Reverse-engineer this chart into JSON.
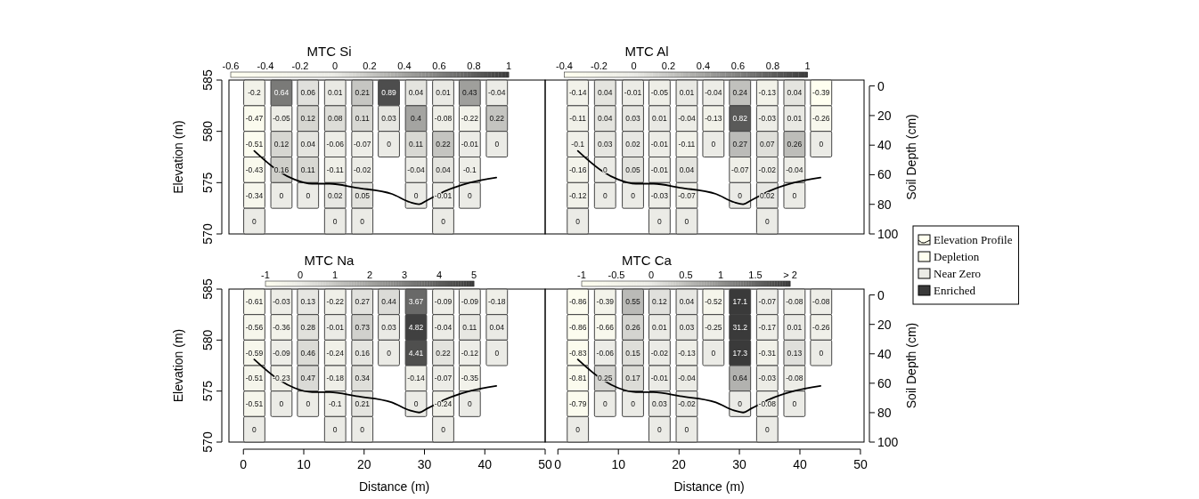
{
  "chart_data": [
    {
      "type": "heatmap",
      "title": "MTC Si",
      "ylabel": "Elevation (m)",
      "xlim": [
        -2.4,
        50
      ],
      "ylim": [
        570,
        585
      ],
      "yticks": [
        570,
        575,
        580,
        585
      ],
      "tick_labels": "y",
      "clim": [
        -0.6,
        1
      ],
      "cticks": [
        -0.6,
        -0.4,
        -0.2,
        0,
        0.2,
        0.4,
        0.6,
        0.8,
        1
      ],
      "colors": [
        "#fffff0",
        "#ebebe6",
        "#3a3a3a"
      ],
      "data_labels": true,
      "x": [
        1.8,
        6.3,
        10.7,
        15.2,
        19.7,
        24.1,
        28.6,
        33.1,
        37.5,
        42.0
      ],
      "cells": [
        [
          -0.2,
          0.64,
          0.06,
          0.01,
          0.21,
          0.89,
          0.04,
          0.01,
          0.43,
          -0.04
        ],
        [
          -0.47,
          -0.05,
          0.12,
          0.08,
          0.11,
          0.03,
          0.4,
          -0.08,
          -0.22,
          0.22
        ],
        [
          -0.51,
          0.12,
          0.04,
          -0.06,
          -0.07,
          0,
          0.11,
          0.22,
          -0.01,
          0
        ],
        [
          -0.43,
          0.16,
          0.11,
          -0.11,
          -0.02,
          null,
          -0.04,
          0.04,
          -0.1,
          null
        ],
        [
          -0.34,
          0,
          0,
          0.02,
          0.05,
          null,
          0,
          -0.01,
          0,
          null
        ],
        [
          0,
          null,
          null,
          0,
          0,
          null,
          null,
          0,
          null,
          null
        ]
      ],
      "series": [
        {
          "type": "line",
          "color": "#000000",
          "x": [
            1.8,
            5.9,
            8.5,
            11.4,
            14.3,
            18.7,
            24.6,
            27.6,
            29.1,
            30.5,
            33.5,
            37.5,
            41.9
          ],
          "values": [
            578.1,
            576.1,
            575.3,
            574.9,
            574.9,
            574.5,
            573.9,
            573.1,
            572.9,
            573.3,
            574.2,
            575.0,
            575.5
          ],
          "value_labels": [
            null,
            null,
            null,
            null,
            null,
            null,
            null,
            null,
            null,
            null,
            null,
            null,
            null
          ]
        }
      ]
    },
    {
      "type": "heatmap",
      "title": "MTC Al",
      "y2label": "Soil Depth (cm)",
      "xlim": [
        -2.1,
        50.6
      ],
      "ylim": [
        570,
        585
      ],
      "y2lim": [
        100,
        -4
      ],
      "y2ticks": [
        0,
        20,
        40,
        60,
        80,
        100
      ],
      "tick_labels": "y2",
      "clim": [
        -0.4,
        1
      ],
      "cticks": [
        -0.4,
        -0.2,
        0,
        0.2,
        0.4,
        0.6,
        0.8,
        1
      ],
      "colors": [
        "#fffff0",
        "#ebebe6",
        "#3a3a3a"
      ],
      "data_labels": true,
      "legend": "right",
      "x": [
        3.3,
        7.8,
        12.4,
        16.8,
        21.3,
        25.7,
        30.1,
        34.6,
        39.1,
        43.5
      ],
      "cells": [
        [
          -0.14,
          0.04,
          -0.01,
          -0.05,
          0.01,
          -0.04,
          0.24,
          -0.13,
          0.04,
          -0.39
        ],
        [
          -0.11,
          0.04,
          0.03,
          0.01,
          -0.04,
          -0.13,
          0.82,
          -0.03,
          0.01,
          -0.26
        ],
        [
          -0.1,
          0.03,
          0.02,
          -0.01,
          -0.11,
          0,
          0.27,
          0.07,
          0.26,
          0
        ],
        [
          -0.16,
          0,
          0.05,
          -0.01,
          0.04,
          null,
          -0.07,
          -0.02,
          -0.04,
          null
        ],
        [
          -0.12,
          0,
          0,
          -0.03,
          -0.07,
          null,
          0,
          0.02,
          0,
          null
        ],
        [
          0,
          null,
          null,
          0,
          0,
          null,
          null,
          0,
          null,
          null
        ]
      ],
      "series": [
        {
          "type": "line",
          "name": "Elevation Profile",
          "color": "#000000",
          "x": [
            3.3,
            7.4,
            10.0,
            12.9,
            15.8,
            20.2,
            26.1,
            29.1,
            30.6,
            32.0,
            35.0,
            39.0,
            43.4
          ],
          "values": [
            578.1,
            576.1,
            575.3,
            574.9,
            574.9,
            574.5,
            573.9,
            573.1,
            572.9,
            573.3,
            574.2,
            575.0,
            575.5
          ],
          "value_labels": [
            null,
            null,
            null,
            null,
            null,
            null,
            null,
            null,
            null,
            null,
            null,
            null,
            null
          ]
        }
      ],
      "annotations": [
        "Depletion",
        "Near Zero",
        "Enriched"
      ]
    },
    {
      "type": "heatmap",
      "title": "MTC Na",
      "xlabel": "Distance (m)",
      "ylabel": "Elevation (m)",
      "xlim": [
        -2.4,
        50
      ],
      "xticks": [
        0,
        10,
        20,
        30,
        40,
        50
      ],
      "ylim": [
        570,
        585
      ],
      "yticks": [
        570,
        575,
        580,
        585
      ],
      "tick_labels": "xy",
      "clim": [
        -1,
        5
      ],
      "cticks": [
        -1,
        0,
        1,
        2,
        3,
        4,
        5
      ],
      "colors": [
        "#fffff0",
        "#ebebe6",
        "#3a3a3a"
      ],
      "data_labels": true,
      "x": [
        1.8,
        6.3,
        10.7,
        15.2,
        19.7,
        24.1,
        28.6,
        33.1,
        37.5,
        42.0
      ],
      "cells": [
        [
          -0.61,
          -0.03,
          0.13,
          -0.22,
          0.27,
          0.44,
          3.67,
          -0.09,
          -0.09,
          -0.18
        ],
        [
          -0.56,
          -0.36,
          0.28,
          -0.01,
          0.73,
          0.03,
          4.82,
          -0.04,
          0.11,
          0.04
        ],
        [
          -0.59,
          -0.09,
          0.46,
          -0.24,
          0.16,
          0,
          4.41,
          0.22,
          -0.12,
          0
        ],
        [
          -0.51,
          -0.23,
          0.47,
          -0.18,
          0.34,
          null,
          -0.14,
          -0.07,
          -0.35,
          null
        ],
        [
          -0.51,
          0,
          0,
          -0.1,
          0.21,
          null,
          0,
          -0.24,
          0,
          null
        ],
        [
          0,
          null,
          null,
          0,
          0,
          null,
          null,
          0,
          null,
          null
        ]
      ],
      "series": [
        {
          "type": "line",
          "color": "#000000",
          "x": [
            1.8,
            5.9,
            8.5,
            11.4,
            14.3,
            18.7,
            24.6,
            27.6,
            29.1,
            30.5,
            33.5,
            37.5,
            41.9
          ],
          "values": [
            578.1,
            576.1,
            575.3,
            574.9,
            574.9,
            574.5,
            573.9,
            573.1,
            572.9,
            573.3,
            574.2,
            575.0,
            575.5
          ],
          "value_labels": [
            null,
            null,
            null,
            null,
            null,
            null,
            null,
            null,
            null,
            null,
            null,
            null,
            null
          ]
        }
      ]
    },
    {
      "type": "heatmap",
      "title": "MTC Ca",
      "xlabel": "Distance (m)",
      "y2label": "Soil Depth (cm)",
      "xlim": [
        -2.1,
        50.6
      ],
      "xticks": [
        0,
        10,
        20,
        30,
        40,
        50
      ],
      "ylim": [
        570,
        585
      ],
      "y2lim": [
        100,
        -4
      ],
      "y2ticks": [
        0,
        20,
        40,
        60,
        80,
        100
      ],
      "tick_labels": "xy2",
      "clim": [
        -1,
        2
      ],
      "cticks": [
        -1,
        -0.5,
        0,
        0.5,
        1,
        1.5,
        {
          "value": 2,
          "label": "> 2"
        }
      ],
      "colors": [
        "#fffff0",
        "#ebebe6",
        "#3a3a3a"
      ],
      "data_labels": true,
      "x": [
        3.3,
        7.8,
        12.4,
        16.8,
        21.3,
        25.7,
        30.1,
        34.6,
        39.1,
        43.5
      ],
      "cells": [
        [
          -0.86,
          -0.39,
          0.55,
          0.12,
          0.04,
          -0.52,
          17.1,
          -0.07,
          -0.08,
          -0.08
        ],
        [
          -0.86,
          -0.66,
          0.26,
          0.01,
          0.03,
          -0.25,
          31.2,
          -0.17,
          0.01,
          -0.26
        ],
        [
          -0.83,
          -0.06,
          0.15,
          -0.02,
          -0.13,
          0,
          17.3,
          -0.31,
          0.13,
          0
        ],
        [
          -0.81,
          0.25,
          0.17,
          -0.01,
          -0.04,
          null,
          0.64,
          -0.03,
          -0.08,
          null
        ],
        [
          -0.79,
          0,
          0,
          0.03,
          -0.02,
          null,
          0,
          -0.08,
          0,
          null
        ],
        [
          0,
          null,
          null,
          0,
          0,
          null,
          null,
          0,
          null,
          null
        ]
      ],
      "series": [
        {
          "type": "line",
          "color": "#000000",
          "x": [
            3.3,
            7.4,
            10.0,
            12.9,
            15.8,
            20.2,
            26.1,
            29.1,
            30.6,
            32.0,
            35.0,
            39.0,
            43.4
          ],
          "values": [
            578.1,
            576.1,
            575.3,
            574.9,
            574.9,
            574.5,
            573.9,
            573.1,
            572.9,
            573.3,
            574.2,
            575.0,
            575.5
          ],
          "value_labels": [
            null,
            null,
            null,
            null,
            null,
            null,
            null,
            null,
            null,
            null,
            null,
            null,
            null
          ]
        }
      ]
    }
  ]
}
